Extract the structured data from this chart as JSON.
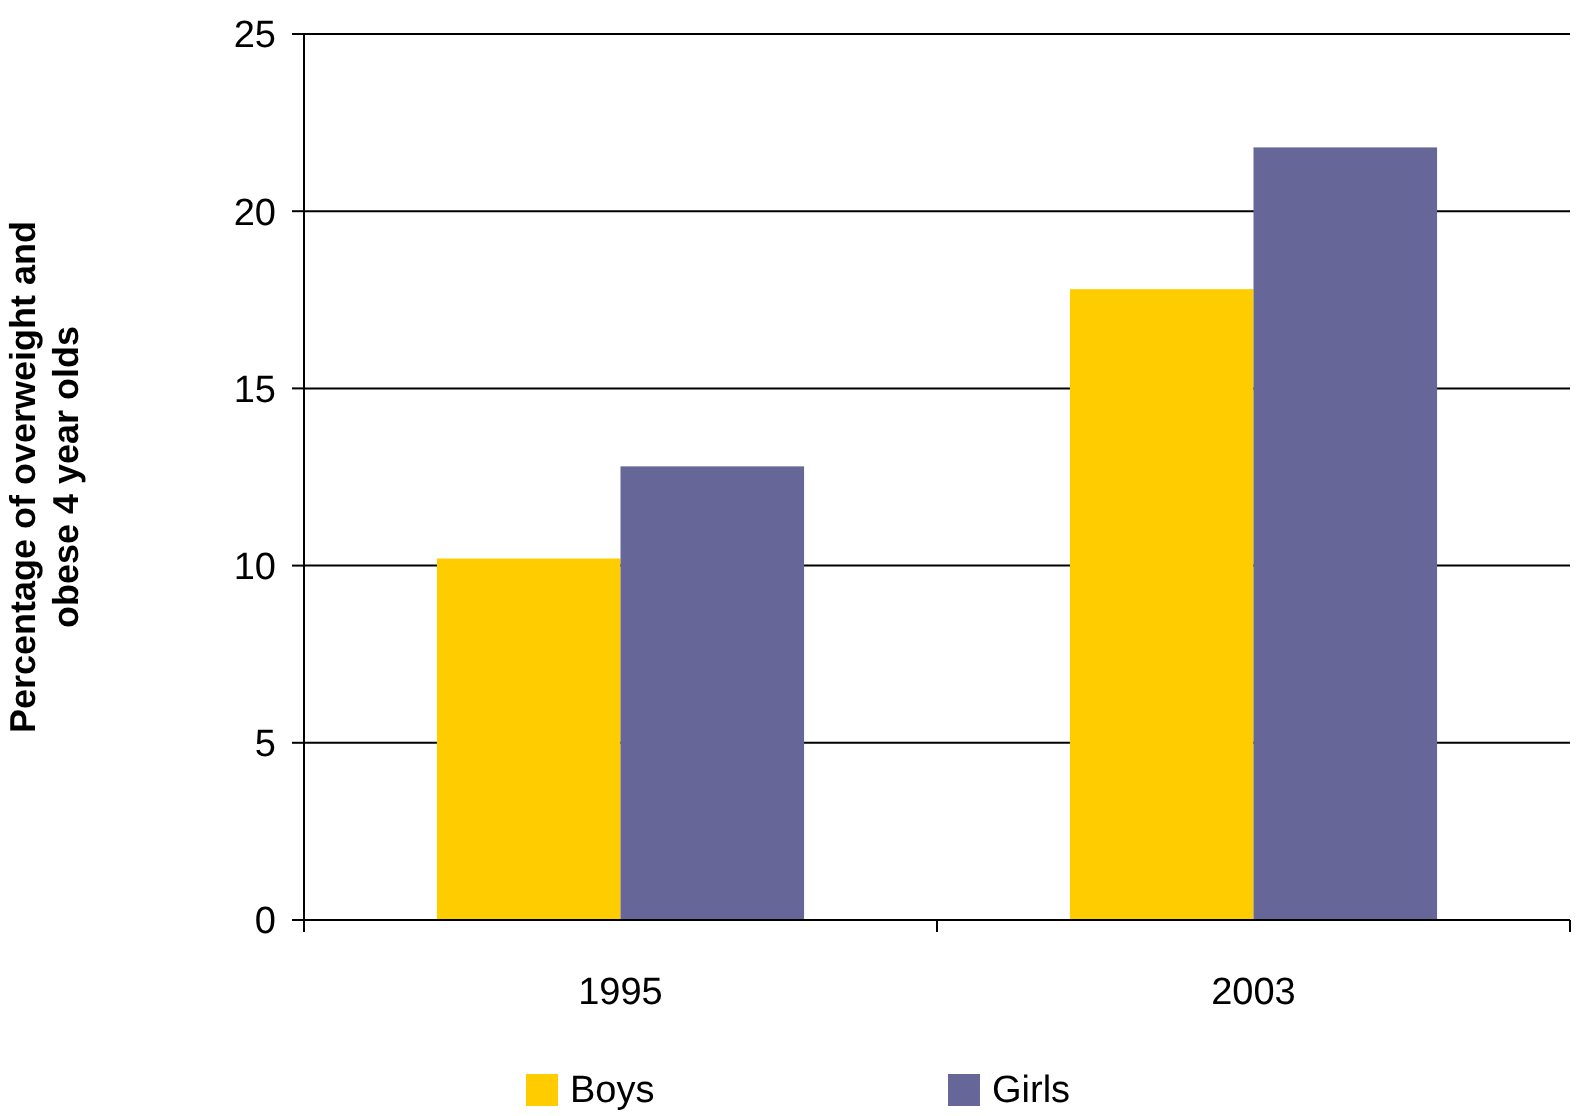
{
  "chart_data": {
    "type": "bar",
    "ylabel": "Percentage of overweight and obese 4 year olds",
    "categories": [
      "1995",
      "2003"
    ],
    "series": [
      {
        "name": "Boys",
        "color": "#ffcc00",
        "values": [
          10.2,
          17.8
        ]
      },
      {
        "name": "Girls",
        "color": "#666699",
        "values": [
          12.8,
          21.8
        ]
      }
    ],
    "ylim": [
      0,
      25
    ],
    "yticks": [
      0,
      5,
      10,
      15,
      20,
      25
    ],
    "grid": "y",
    "legend": "bottom"
  }
}
